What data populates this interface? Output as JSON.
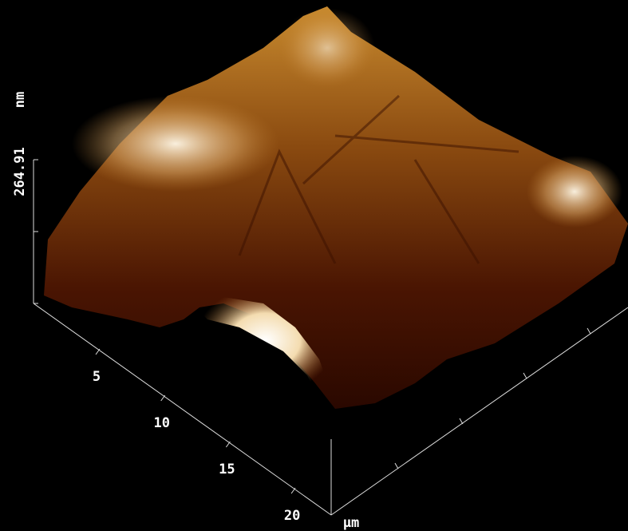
{
  "z_axis": {
    "max_label": "264.91",
    "unit": "nm"
  },
  "xy_axis": {
    "ticks": [
      5,
      10,
      15,
      20
    ],
    "unit": "μm"
  }
}
